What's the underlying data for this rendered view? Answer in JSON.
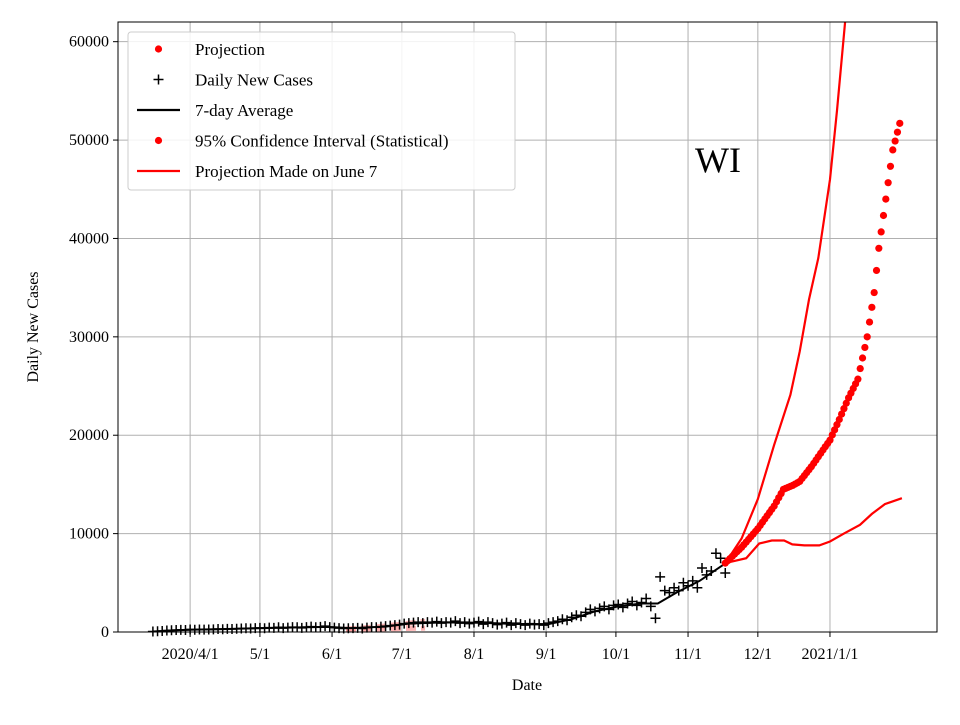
{
  "chart_data": {
    "type": "line",
    "title": "WI",
    "xlabel": "Date",
    "ylabel": "Daily New Cases",
    "x_units": "day of year counted from 2020-01-01 (Jan 1 = 1)",
    "xlim": [
      60,
      412
    ],
    "ylim": [
      0,
      62000
    ],
    "grid": true,
    "legend_position": "top-left",
    "x_ticks": [
      {
        "value": 91,
        "label": "2020/4/1"
      },
      {
        "value": 121,
        "label": "5/1"
      },
      {
        "value": 152,
        "label": "6/1"
      },
      {
        "value": 182,
        "label": "7/1"
      },
      {
        "value": 213,
        "label": "8/1"
      },
      {
        "value": 244,
        "label": "9/1"
      },
      {
        "value": 274,
        "label": "10/1"
      },
      {
        "value": 305,
        "label": "11/1"
      },
      {
        "value": 335,
        "label": "12/1"
      },
      {
        "value": 366,
        "label": "2021/1/1"
      }
    ],
    "y_ticks": [
      0,
      10000,
      20000,
      30000,
      40000,
      50000,
      60000
    ],
    "legend": [
      {
        "label": "Projection",
        "marker": "dot",
        "color": "#ff0000"
      },
      {
        "label": "Daily New Cases",
        "marker": "plus",
        "color": "#000000"
      },
      {
        "label": "7-day Average",
        "marker": "line",
        "color": "#000000"
      },
      {
        "label": "95% Confidence Interval (Statistical)",
        "marker": "dot",
        "color": "#ff0000"
      },
      {
        "label": "Projection Made on June 7",
        "marker": "line",
        "color": "#ff0000"
      }
    ],
    "series": {
      "daily_new_cases": {
        "x_start": 75,
        "x_step": 2,
        "values": [
          50,
          80,
          100,
          150,
          180,
          200,
          220,
          200,
          250,
          230,
          260,
          240,
          250,
          270,
          300,
          280,
          320,
          300,
          330,
          350,
          380,
          350,
          400,
          420,
          380,
          450,
          420,
          480,
          400,
          450,
          500,
          480,
          420,
          500,
          550,
          480,
          520,
          600,
          500,
          450,
          400,
          350,
          380,
          400,
          420,
          350,
          450,
          500,
          480,
          550,
          600,
          650,
          700,
          750,
          850,
          900,
          950,
          1000,
          900,
          1000,
          950,
          1050,
          900,
          1000,
          950,
          1100,
          900,
          1000,
          850,
          950,
          1050,
          800,
          1000,
          900,
          750,
          850,
          950,
          700,
          900,
          800,
          700,
          850,
          750,
          800,
          700,
          900,
          1000,
          1100,
          1300,
          1200,
          1500,
          1700,
          1600,
          2000,
          2300,
          2100,
          2400,
          2600,
          2300,
          2700,
          2800,
          2500,
          2900,
          3100,
          2700,
          3000,
          3400,
          2600,
          1400,
          5600,
          4200,
          4000,
          4500,
          4200,
          5000,
          4700,
          5200,
          4500,
          6500,
          5800,
          6200,
          8000,
          7500,
          6000
        ]
      },
      "seven_day_average": [
        [
          75,
          50
        ],
        [
          90,
          220
        ],
        [
          105,
          290
        ],
        [
          120,
          390
        ],
        [
          135,
          460
        ],
        [
          150,
          520
        ],
        [
          160,
          400
        ],
        [
          175,
          550
        ],
        [
          185,
          850
        ],
        [
          200,
          980
        ],
        [
          215,
          950
        ],
        [
          230,
          820
        ],
        [
          245,
          800
        ],
        [
          255,
          1300
        ],
        [
          265,
          2100
        ],
        [
          275,
          2600
        ],
        [
          285,
          2900
        ],
        [
          292,
          2900
        ],
        [
          300,
          4000
        ],
        [
          310,
          5200
        ],
        [
          320,
          6800
        ]
      ],
      "projection": [
        [
          321,
          7000
        ],
        [
          328,
          8600
        ],
        [
          335,
          10500
        ],
        [
          342,
          12800
        ],
        [
          346,
          14500
        ],
        [
          350,
          14900
        ],
        [
          353,
          15300
        ],
        [
          358,
          16800
        ],
        [
          363,
          18500
        ],
        [
          366,
          19500
        ],
        [
          370,
          21600
        ],
        [
          374,
          23800
        ],
        [
          378,
          25700
        ],
        [
          382,
          30000
        ],
        [
          385,
          34500
        ],
        [
          387,
          39000
        ],
        [
          390,
          44000
        ],
        [
          393,
          49000
        ],
        [
          396,
          51700
        ]
      ],
      "ci_upper": [
        [
          321,
          7000
        ],
        [
          328,
          9500
        ],
        [
          335,
          13500
        ],
        [
          342,
          19000
        ],
        [
          349,
          24100
        ],
        [
          353,
          28500
        ],
        [
          357,
          33800
        ],
        [
          361,
          38000
        ],
        [
          366,
          46000
        ],
        [
          369,
          53000
        ],
        [
          372.5,
          62000
        ]
      ],
      "ci_lower": [
        [
          321,
          7000
        ],
        [
          330,
          7500
        ],
        [
          335.6,
          9000
        ],
        [
          341,
          9300
        ],
        [
          346.3,
          9300
        ],
        [
          349.8,
          8900
        ],
        [
          355,
          8800
        ],
        [
          361.4,
          8800
        ],
        [
          366,
          9200
        ],
        [
          372,
          10000
        ],
        [
          378.9,
          10900
        ],
        [
          384,
          12000
        ],
        [
          389.6,
          13000
        ],
        [
          396.9,
          13600
        ]
      ],
      "june7_projection": [
        [
          [
            158,
            300
          ],
          [
            170,
            500
          ],
          [
            182,
            800
          ],
          [
            192,
            1100
          ]
        ],
        [
          [
            158,
            250
          ],
          [
            170,
            300
          ],
          [
            182,
            350
          ],
          [
            192,
            400
          ]
        ]
      ]
    }
  }
}
